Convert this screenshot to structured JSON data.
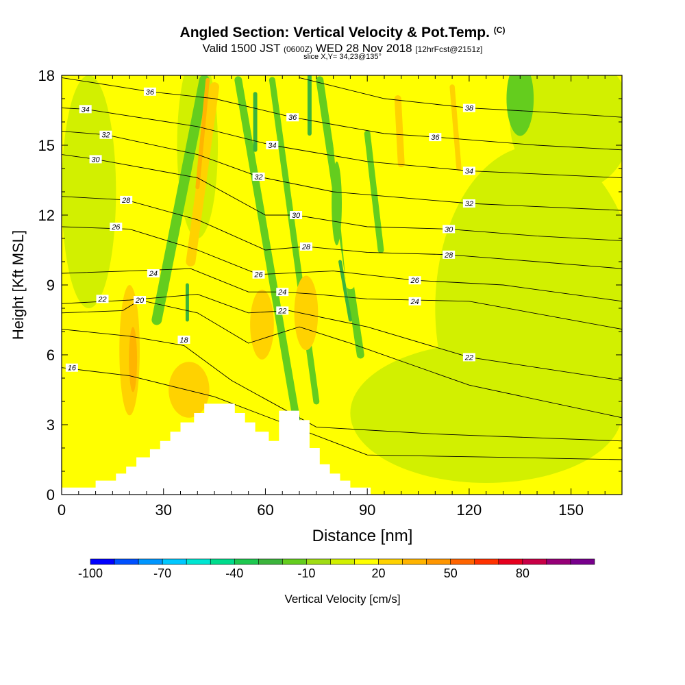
{
  "header": {
    "title": "Angled Section: Vertical Velocity & Pot.Temp.",
    "title_suffix": "(C)",
    "valid_prefix": "Valid 1500 JST",
    "valid_utc": "(0600Z)",
    "valid_date": "WED 28 Nov 2018",
    "forecast": "[12hrFcst@2151z]",
    "slice": "slice X,Y= 34,23@135°"
  },
  "chart_data": {
    "type": "heatmap",
    "title": "Angled Section: Vertical Velocity & Pot.Temp. (C)",
    "xlabel": "Distance [nm]",
    "ylabel": "Height [Kft MSL]",
    "xlim": [
      0,
      165
    ],
    "ylim": [
      0,
      18
    ],
    "x_ticks": [
      0,
      30,
      60,
      90,
      120,
      150
    ],
    "y_ticks": [
      0,
      3,
      6,
      9,
      12,
      15,
      18
    ],
    "grid": false,
    "colorbar": {
      "label": "Vertical Velocity [cm/s]",
      "tick_labels": [
        "-100",
        "-70",
        "-40",
        "-10",
        "20",
        "50",
        "80"
      ],
      "levels": [
        -100,
        -90,
        -80,
        -70,
        -60,
        -50,
        -40,
        -30,
        -20,
        -10,
        0,
        10,
        20,
        30,
        40,
        50,
        60,
        70,
        80,
        90,
        100
      ],
      "colors": [
        "#0000ff",
        "#0050ff",
        "#0096ff",
        "#00c8ff",
        "#00e6d2",
        "#00dc8c",
        "#1ec850",
        "#3cb43c",
        "#64cd1e",
        "#a0dc14",
        "#d2f000",
        "#ffff00",
        "#ffd200",
        "#ffb400",
        "#ff9600",
        "#ff6400",
        "#ff3200",
        "#e6001e",
        "#c80046",
        "#960078",
        "#78008c"
      ]
    },
    "terrain_profile": {
      "x": [
        0,
        10,
        10,
        16,
        16,
        19,
        19,
        22,
        22,
        26,
        26,
        29,
        29,
        32,
        32,
        35,
        35,
        39,
        39,
        42,
        42,
        45,
        45,
        51,
        51,
        54,
        54,
        57,
        57,
        61,
        61,
        64,
        64,
        70,
        70,
        73,
        73,
        76,
        76,
        79,
        79,
        82,
        82,
        85,
        85,
        91,
        91
      ],
      "height": [
        0.3,
        0.3,
        0.6,
        0.6,
        0.9,
        0.9,
        1.2,
        1.2,
        1.6,
        1.6,
        1.95,
        1.95,
        2.3,
        2.3,
        2.7,
        2.7,
        3.1,
        3.1,
        3.5,
        3.5,
        3.9,
        3.9,
        3.9,
        3.9,
        3.5,
        3.5,
        3.1,
        3.1,
        2.7,
        2.7,
        2.3,
        2.3,
        3.6,
        3.6,
        3.2,
        3.2,
        2.0,
        2.0,
        1.3,
        1.3,
        0.9,
        0.9,
        0.6,
        0.6,
        0.3,
        0.3,
        0
      ]
    },
    "series": [
      {
        "name": "16",
        "x": [
          0,
          20,
          45,
          90,
          130,
          165
        ],
        "y": [
          5.45,
          5.1,
          4.2,
          1.7,
          1.6,
          1.5
        ],
        "label_at": [
          3,
          5.45
        ]
      },
      {
        "name": "18",
        "x": [
          0,
          20,
          36,
          50,
          75,
          110,
          165
        ],
        "y": [
          7.1,
          6.8,
          6.4,
          4.9,
          2.9,
          2.6,
          2.3
        ],
        "label_at": [
          36,
          6.65
        ]
      },
      {
        "name": "20",
        "x": [
          0,
          18,
          23,
          40,
          55,
          70,
          85,
          120,
          165
        ],
        "y": [
          7.8,
          7.9,
          8.35,
          7.8,
          6.5,
          7.2,
          6.5,
          4.7,
          3.3
        ],
        "label_at": [
          23,
          8.35
        ]
      },
      {
        "name": "22",
        "x": [
          0,
          20,
          40,
          55,
          67,
          90,
          120,
          165
        ],
        "y": [
          8.2,
          8.35,
          8.6,
          7.8,
          7.9,
          7.2,
          5.9,
          4.9
        ],
        "label_at": [
          12,
          8.4
        ]
      },
      {
        "name": "22",
        "x": [
          0,
          20,
          40,
          55,
          67,
          90,
          120,
          165
        ],
        "y": [
          8.2,
          8.35,
          8.6,
          7.8,
          7.9,
          7.2,
          5.9,
          4.9
        ],
        "label_at": [
          65,
          7.9
        ]
      },
      {
        "name": "22",
        "x": [
          0,
          20,
          40,
          55,
          67,
          90,
          120,
          165
        ],
        "y": [
          8.2,
          8.35,
          8.6,
          7.8,
          7.9,
          7.2,
          5.9,
          4.9
        ],
        "label_at": [
          120,
          5.9
        ]
      },
      {
        "name": "24",
        "x": [
          0,
          20,
          38,
          55,
          65,
          75,
          90,
          120,
          165
        ],
        "y": [
          9.5,
          9.6,
          9.7,
          8.7,
          8.7,
          8.6,
          8.4,
          8.3,
          7.1
        ],
        "label_at": [
          27,
          9.5
        ]
      },
      {
        "name": "24",
        "x": [
          0,
          20,
          38,
          55,
          65,
          75,
          90,
          120,
          165
        ],
        "y": [
          9.5,
          9.6,
          9.7,
          8.7,
          8.7,
          8.6,
          8.4,
          8.3,
          7.1
        ],
        "label_at": [
          65,
          8.7
        ]
      },
      {
        "name": "24",
        "x": [
          0,
          20,
          38,
          55,
          65,
          75,
          90,
          120,
          165
        ],
        "y": [
          9.5,
          9.6,
          9.7,
          8.7,
          8.7,
          8.6,
          8.4,
          8.3,
          7.1
        ],
        "label_at": [
          104,
          8.3
        ]
      },
      {
        "name": "26",
        "x": [
          0,
          20,
          40,
          58,
          80,
          104,
          130,
          165
        ],
        "y": [
          11.5,
          11.4,
          10.5,
          9.45,
          9.6,
          9.2,
          9.0,
          8.3
        ],
        "label_at": [
          16,
          11.5
        ]
      },
      {
        "name": "26",
        "x": [
          0,
          20,
          40,
          58,
          80,
          104,
          130,
          165
        ],
        "y": [
          11.5,
          11.4,
          10.5,
          9.45,
          9.6,
          9.2,
          9.0,
          8.3
        ],
        "label_at": [
          58,
          9.45
        ]
      },
      {
        "name": "26",
        "x": [
          0,
          20,
          40,
          58,
          80,
          104,
          130,
          165
        ],
        "y": [
          11.5,
          11.4,
          10.5,
          9.45,
          9.6,
          9.2,
          9.0,
          8.3
        ],
        "label_at": [
          104,
          9.2
        ]
      },
      {
        "name": "28",
        "x": [
          0,
          19,
          40,
          60,
          72,
          90,
          114,
          140,
          165
        ],
        "y": [
          12.8,
          12.65,
          11.8,
          10.5,
          10.65,
          10.4,
          10.3,
          10.0,
          9.7
        ],
        "label_at": [
          19,
          12.65
        ]
      },
      {
        "name": "28",
        "x": [
          0,
          19,
          40,
          60,
          72,
          90,
          114,
          140,
          165
        ],
        "y": [
          12.8,
          12.65,
          11.8,
          10.5,
          10.65,
          10.4,
          10.3,
          10.0,
          9.7
        ],
        "label_at": [
          72,
          10.65
        ]
      },
      {
        "name": "28",
        "x": [
          0,
          19,
          40,
          60,
          72,
          90,
          114,
          140,
          165
        ],
        "y": [
          12.8,
          12.65,
          11.8,
          10.5,
          10.65,
          10.4,
          10.3,
          10.0,
          9.7
        ],
        "label_at": [
          114,
          10.3
        ]
      },
      {
        "name": "30",
        "x": [
          0,
          10,
          40,
          60,
          69,
          90,
          114,
          140,
          165
        ],
        "y": [
          14.6,
          14.4,
          13.6,
          12.0,
          12.0,
          11.5,
          11.4,
          11.1,
          10.9
        ],
        "label_at": [
          10,
          14.4
        ]
      },
      {
        "name": "30",
        "x": [
          0,
          10,
          40,
          60,
          69,
          90,
          114,
          140,
          165
        ],
        "y": [
          14.6,
          14.4,
          13.6,
          12.0,
          12.0,
          11.5,
          11.4,
          11.1,
          10.9
        ],
        "label_at": [
          69,
          12.0
        ]
      },
      {
        "name": "30",
        "x": [
          0,
          10,
          40,
          60,
          69,
          90,
          114,
          140,
          165
        ],
        "y": [
          14.6,
          14.4,
          13.6,
          12.0,
          12.0,
          11.5,
          11.4,
          11.1,
          10.9
        ],
        "label_at": [
          114,
          11.4
        ]
      },
      {
        "name": "32",
        "x": [
          0,
          13,
          40,
          58,
          80,
          120,
          165
        ],
        "y": [
          15.6,
          15.45,
          14.6,
          13.65,
          13.0,
          12.5,
          12.2
        ],
        "label_at": [
          13,
          15.45
        ]
      },
      {
        "name": "32",
        "x": [
          0,
          13,
          40,
          58,
          80,
          120,
          165
        ],
        "y": [
          15.6,
          15.45,
          14.6,
          13.65,
          13.0,
          12.5,
          12.2
        ],
        "label_at": [
          58,
          13.65
        ]
      },
      {
        "name": "32",
        "x": [
          0,
          13,
          40,
          58,
          80,
          120,
          165
        ],
        "y": [
          15.6,
          15.45,
          14.6,
          13.65,
          13.0,
          12.5,
          12.2
        ],
        "label_at": [
          120,
          12.5
        ]
      },
      {
        "name": "34",
        "x": [
          0,
          7,
          40,
          62,
          90,
          120,
          165
        ],
        "y": [
          16.6,
          16.55,
          15.8,
          15.0,
          14.3,
          13.9,
          13.6
        ],
        "label_at": [
          7,
          16.55
        ]
      },
      {
        "name": "34",
        "x": [
          0,
          7,
          40,
          62,
          90,
          120,
          165
        ],
        "y": [
          16.6,
          16.55,
          15.8,
          15.0,
          14.3,
          13.9,
          13.6
        ],
        "label_at": [
          62,
          15.0
        ]
      },
      {
        "name": "34",
        "x": [
          0,
          7,
          40,
          62,
          90,
          120,
          165
        ],
        "y": [
          16.6,
          16.55,
          15.8,
          15.0,
          14.3,
          13.9,
          13.6
        ],
        "label_at": [
          120,
          13.9
        ]
      },
      {
        "name": "36",
        "x": [
          0,
          26,
          45,
          68,
          95,
          110,
          140,
          165
        ],
        "y": [
          17.9,
          17.3,
          17.0,
          16.2,
          15.5,
          15.35,
          15.0,
          14.8
        ],
        "label_at": [
          26,
          17.3
        ]
      },
      {
        "name": "36",
        "x": [
          0,
          26,
          45,
          68,
          95,
          110,
          140,
          165
        ],
        "y": [
          17.9,
          17.3,
          17.0,
          16.2,
          15.5,
          15.35,
          15.0,
          14.8
        ],
        "label_at": [
          68,
          16.2
        ]
      },
      {
        "name": "36",
        "x": [
          0,
          26,
          45,
          68,
          95,
          110,
          140,
          165
        ],
        "y": [
          17.9,
          17.3,
          17.0,
          16.2,
          15.5,
          15.35,
          15.0,
          14.8
        ],
        "label_at": [
          110,
          15.35
        ]
      },
      {
        "name": "38",
        "x": [
          70,
          95,
          120,
          145,
          165
        ],
        "y": [
          17.9,
          17.0,
          16.6,
          16.4,
          16.2
        ],
        "label_at": [
          120,
          16.6
        ]
      }
    ],
    "velocity_field": {
      "background": 10,
      "features": [
        {
          "kind": "ellipse",
          "cx": 8,
          "cy": 13,
          "rx": 8,
          "ry": 5,
          "value": 0
        },
        {
          "kind": "ellipse",
          "cx": 140,
          "cy": 8,
          "rx": 30,
          "ry": 7,
          "value": 0
        },
        {
          "kind": "ellipse",
          "cx": 125,
          "cy": 3.5,
          "rx": 40,
          "ry": 3,
          "value": 0
        },
        {
          "kind": "ellipse",
          "cx": 150,
          "cy": 16,
          "rx": 18,
          "ry": 3,
          "value": 0
        },
        {
          "kind": "ellipse",
          "cx": 40,
          "cy": 15,
          "rx": 6,
          "ry": 4,
          "value": 0
        },
        {
          "kind": "band",
          "x1": 42,
          "y1": 17.8,
          "x2": 28,
          "y2": 7.5,
          "width": 3,
          "value": -20
        },
        {
          "kind": "band",
          "x1": 52,
          "y1": 17.8,
          "x2": 70,
          "y2": 2.5,
          "width": 2.2,
          "value": -20
        },
        {
          "kind": "band",
          "x1": 62,
          "y1": 17.8,
          "x2": 75,
          "y2": 4,
          "width": 1.8,
          "value": -20
        },
        {
          "kind": "band",
          "x1": 76,
          "y1": 17.8,
          "x2": 88,
          "y2": 6,
          "width": 2.2,
          "value": -20
        },
        {
          "kind": "band",
          "x1": 90,
          "y1": 15.5,
          "x2": 94,
          "y2": 10.5,
          "width": 1.8,
          "value": -20
        },
        {
          "kind": "ellipse",
          "cx": 135,
          "cy": 17,
          "rx": 4,
          "ry": 1.6,
          "value": -20
        },
        {
          "kind": "band",
          "x1": 48,
          "y1": 18,
          "x2": 48,
          "y2": 8.5,
          "width": 2,
          "value": 10
        },
        {
          "kind": "band",
          "x1": 53,
          "y1": 14,
          "x2": 57,
          "y2": 9.5,
          "width": 1.5,
          "value": 10
        },
        {
          "kind": "band",
          "x1": 80,
          "y1": 17,
          "x2": 85,
          "y2": 9,
          "width": 2.5,
          "value": 10
        },
        {
          "kind": "band",
          "x1": 110,
          "y1": 17.5,
          "x2": 110,
          "y2": 13,
          "width": 1.5,
          "value": 10
        },
        {
          "kind": "band",
          "x1": 45,
          "y1": 17.5,
          "x2": 38,
          "y2": 10,
          "width": 2.8,
          "value": 20
        },
        {
          "kind": "band",
          "x1": 115,
          "y1": 17.5,
          "x2": 117,
          "y2": 14,
          "width": 1.5,
          "value": 20
        },
        {
          "kind": "band",
          "x1": 99,
          "y1": 17,
          "x2": 100,
          "y2": 14.2,
          "width": 2,
          "value": 20
        },
        {
          "kind": "ellipse",
          "cx": 59,
          "cy": 7.3,
          "rx": 3.5,
          "ry": 1.5,
          "value": 20
        },
        {
          "kind": "ellipse",
          "cx": 72,
          "cy": 7.8,
          "rx": 3.5,
          "ry": 1.6,
          "value": 20
        },
        {
          "kind": "ellipse",
          "cx": 20,
          "cy": 6.2,
          "rx": 3,
          "ry": 2.8,
          "value": 20
        },
        {
          "kind": "ellipse",
          "cx": 37.5,
          "cy": 4.5,
          "rx": 6,
          "ry": 1.2,
          "value": 20
        },
        {
          "kind": "ellipse",
          "cx": 81,
          "cy": 12.5,
          "rx": 1.5,
          "ry": 1.8,
          "value": -20
        },
        {
          "kind": "band",
          "x1": 57,
          "y1": 17.2,
          "x2": 57,
          "y2": 14.8,
          "width": 1.2,
          "value": -30
        },
        {
          "kind": "band",
          "x1": 73,
          "y1": 18,
          "x2": 73,
          "y2": 15.5,
          "width": 1.2,
          "value": -30
        },
        {
          "kind": "band",
          "x1": 37,
          "y1": 9,
          "x2": 37,
          "y2": 7.5,
          "width": 1,
          "value": -30
        },
        {
          "kind": "band",
          "x1": 82,
          "y1": 10,
          "x2": 85,
          "y2": 7.5,
          "width": 1,
          "value": -30
        },
        {
          "kind": "band",
          "x1": 43,
          "y1": 17.8,
          "x2": 40,
          "y2": 13.2,
          "width": 1.2,
          "value": 30
        },
        {
          "kind": "ellipse",
          "cx": 21,
          "cy": 5.8,
          "rx": 1.2,
          "ry": 1.4,
          "value": 30
        }
      ]
    }
  }
}
